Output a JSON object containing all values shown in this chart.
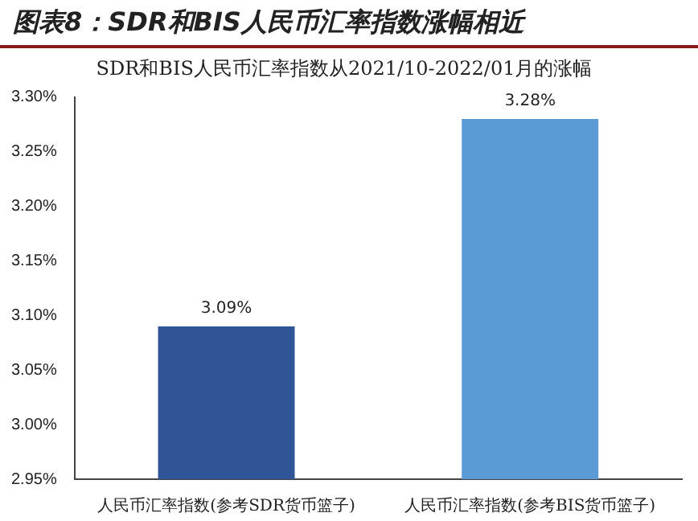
{
  "chart_data": {
    "type": "bar",
    "title": "图表8：SDR和BIS人民币汇率指数涨幅相近",
    "subtitle": "SDR和BIS人民币汇率指数从2021/10-2022/01月的涨幅",
    "categories": [
      "人民币汇率指数(参考SDR货币篮子)",
      "人民币汇率指数(参考BIS货币篮子)"
    ],
    "values": [
      3.09,
      3.28
    ],
    "colors": [
      "#2f5597",
      "#5b9bd5"
    ],
    "value_labels": [
      "3.09%",
      "3.28%"
    ],
    "ylim": [
      2.95,
      3.3
    ],
    "yticks": [
      {
        "value": 2.95,
        "label": "2.95%"
      },
      {
        "value": 3.0,
        "label": "3.00%"
      },
      {
        "value": 3.05,
        "label": "3.05%"
      },
      {
        "value": 3.1,
        "label": "3.10%"
      },
      {
        "value": 3.15,
        "label": "3.15%"
      },
      {
        "value": 3.2,
        "label": "3.20%"
      },
      {
        "value": 3.25,
        "label": "3.25%"
      },
      {
        "value": 3.3,
        "label": "3.30%"
      }
    ],
    "grid": false,
    "legend": false
  }
}
